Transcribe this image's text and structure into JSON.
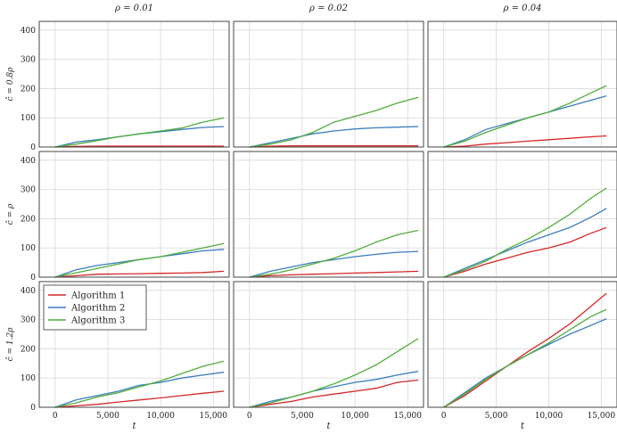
{
  "figure": {
    "col_titles": [
      "ρ = 0.01",
      "ρ = 0.02",
      "ρ = 0.04"
    ],
    "row_labels": [
      "ĉ = 0.8ρ",
      "ĉ = ρ",
      "ĉ = 1.2ρ"
    ],
    "xlabel": "t",
    "x_ticks": [
      0,
      5000,
      10000,
      15000
    ],
    "x_tick_labels": [
      "0",
      "5,000",
      "10,000",
      "15,000"
    ],
    "y_ticks": [
      0,
      100,
      200,
      300,
      400
    ],
    "y_tick_labels": [
      "0",
      "100",
      "200",
      "300",
      "400"
    ]
  },
  "colors": {
    "Algorithm 1": "#d62728",
    "Algorithm 2": "#3a7dbf",
    "Algorithm 3": "#4fae3a"
  },
  "legend": {
    "items": [
      "Algorithm 1",
      "Algorithm 2",
      "Algorithm 3"
    ],
    "placement": "top-left of bottom-left panel"
  },
  "chart_data": {
    "type": "line",
    "layout": "3x3 grid of line plots",
    "xlim": [
      -1500,
      16500
    ],
    "ylim": [
      0,
      430
    ],
    "grid": true,
    "panels": [
      {
        "row": 0,
        "col": 0,
        "series": [
          {
            "name": "Algorithm 1",
            "x": [
              0,
              2000,
              4000,
              6000,
              8000,
              10000,
              12000,
              14000,
              16000
            ],
            "values": [
              0,
              2,
              3,
              3,
              3,
              3,
              3,
              3,
              3
            ]
          },
          {
            "name": "Algorithm 2",
            "x": [
              0,
              2000,
              4000,
              6000,
              8000,
              10000,
              12000,
              14000,
              16000
            ],
            "values": [
              0,
              17,
              25,
              35,
              45,
              52,
              60,
              67,
              70
            ]
          },
          {
            "name": "Algorithm 3",
            "x": [
              0,
              2000,
              4000,
              6000,
              8000,
              10000,
              12000,
              14000,
              16000
            ],
            "values": [
              0,
              10,
              22,
              35,
              45,
              55,
              65,
              85,
              100
            ]
          }
        ]
      },
      {
        "row": 0,
        "col": 1,
        "series": [
          {
            "name": "Algorithm 1",
            "x": [
              0,
              2000,
              4000,
              6000,
              8000,
              10000,
              12000,
              14000,
              16000
            ],
            "values": [
              0,
              3,
              4,
              4,
              4,
              4,
              4,
              4,
              4
            ]
          },
          {
            "name": "Algorithm 2",
            "x": [
              0,
              2000,
              4000,
              6000,
              8000,
              10000,
              12000,
              14000,
              16000
            ],
            "values": [
              0,
              15,
              30,
              45,
              55,
              62,
              66,
              68,
              70
            ]
          },
          {
            "name": "Algorithm 3",
            "x": [
              0,
              2000,
              4000,
              6000,
              8000,
              10000,
              12000,
              14000,
              16000
            ],
            "values": [
              0,
              10,
              25,
              50,
              85,
              105,
              125,
              150,
              170
            ]
          }
        ]
      },
      {
        "row": 0,
        "col": 2,
        "series": [
          {
            "name": "Algorithm 1",
            "x": [
              0,
              2000,
              4000,
              6000,
              8000,
              10000,
              12000,
              14000,
              15500
            ],
            "values": [
              0,
              3,
              10,
              15,
              20,
              25,
              30,
              35,
              38
            ]
          },
          {
            "name": "Algorithm 2",
            "x": [
              0,
              2000,
              4000,
              6000,
              8000,
              10000,
              12000,
              14000,
              15500
            ],
            "values": [
              0,
              25,
              60,
              80,
              100,
              120,
              140,
              160,
              175
            ]
          },
          {
            "name": "Algorithm 3",
            "x": [
              0,
              2000,
              4000,
              6000,
              8000,
              10000,
              12000,
              14000,
              15500
            ],
            "values": [
              0,
              20,
              50,
              75,
              100,
              120,
              150,
              185,
              210
            ]
          }
        ]
      },
      {
        "row": 1,
        "col": 0,
        "series": [
          {
            "name": "Algorithm 1",
            "x": [
              0,
              2000,
              4000,
              6000,
              8000,
              10000,
              12000,
              14000,
              16000
            ],
            "values": [
              0,
              5,
              10,
              11,
              12,
              13,
              14,
              16,
              20
            ]
          },
          {
            "name": "Algorithm 2",
            "x": [
              0,
              2000,
              4000,
              6000,
              8000,
              10000,
              12000,
              14000,
              16000
            ],
            "values": [
              0,
              25,
              40,
              50,
              60,
              70,
              80,
              90,
              95
            ]
          },
          {
            "name": "Algorithm 3",
            "x": [
              0,
              2000,
              4000,
              6000,
              8000,
              10000,
              12000,
              14000,
              16000
            ],
            "values": [
              0,
              15,
              30,
              45,
              60,
              70,
              85,
              100,
              115
            ]
          }
        ]
      },
      {
        "row": 1,
        "col": 1,
        "series": [
          {
            "name": "Algorithm 1",
            "x": [
              0,
              2000,
              4000,
              6000,
              8000,
              10000,
              12000,
              14000,
              16000
            ],
            "values": [
              0,
              5,
              8,
              10,
              12,
              14,
              16,
              18,
              20
            ]
          },
          {
            "name": "Algorithm 2",
            "x": [
              0,
              2000,
              4000,
              6000,
              8000,
              10000,
              12000,
              14000,
              16000
            ],
            "values": [
              0,
              20,
              35,
              50,
              60,
              70,
              78,
              85,
              88
            ]
          },
          {
            "name": "Algorithm 3",
            "x": [
              0,
              2000,
              4000,
              6000,
              8000,
              10000,
              12000,
              14000,
              16000
            ],
            "values": [
              0,
              10,
              25,
              45,
              65,
              90,
              120,
              145,
              160
            ]
          }
        ]
      },
      {
        "row": 1,
        "col": 2,
        "series": [
          {
            "name": "Algorithm 1",
            "x": [
              0,
              2000,
              4000,
              6000,
              8000,
              10000,
              12000,
              14000,
              15500
            ],
            "values": [
              0,
              20,
              45,
              65,
              85,
              100,
              120,
              150,
              170
            ]
          },
          {
            "name": "Algorithm 2",
            "x": [
              0,
              2000,
              4000,
              6000,
              8000,
              10000,
              12000,
              14000,
              15500
            ],
            "values": [
              0,
              30,
              60,
              90,
              120,
              145,
              170,
              205,
              235
            ]
          },
          {
            "name": "Algorithm 3",
            "x": [
              0,
              2000,
              4000,
              6000,
              8000,
              10000,
              12000,
              14000,
              15500
            ],
            "values": [
              0,
              25,
              55,
              95,
              130,
              170,
              215,
              270,
              305
            ]
          }
        ]
      },
      {
        "row": 2,
        "col": 0,
        "series": [
          {
            "name": "Algorithm 1",
            "x": [
              0,
              2000,
              4000,
              6000,
              8000,
              10000,
              12000,
              14000,
              16000
            ],
            "values": [
              0,
              5,
              10,
              18,
              25,
              32,
              40,
              48,
              55
            ]
          },
          {
            "name": "Algorithm 2",
            "x": [
              0,
              2000,
              4000,
              6000,
              8000,
              10000,
              12000,
              14000,
              16000
            ],
            "values": [
              0,
              25,
              40,
              55,
              75,
              85,
              100,
              110,
              120
            ]
          },
          {
            "name": "Algorithm 3",
            "x": [
              0,
              2000,
              4000,
              6000,
              8000,
              10000,
              12000,
              14000,
              16000
            ],
            "values": [
              0,
              15,
              35,
              50,
              70,
              90,
              115,
              140,
              158
            ]
          }
        ]
      },
      {
        "row": 2,
        "col": 1,
        "series": [
          {
            "name": "Algorithm 1",
            "x": [
              0,
              2000,
              4000,
              6000,
              8000,
              10000,
              12000,
              14000,
              16000
            ],
            "values": [
              0,
              10,
              20,
              35,
              45,
              55,
              65,
              85,
              93
            ]
          },
          {
            "name": "Algorithm 2",
            "x": [
              0,
              2000,
              4000,
              6000,
              8000,
              10000,
              12000,
              14000,
              16000
            ],
            "values": [
              0,
              20,
              35,
              55,
              70,
              85,
              95,
              110,
              123
            ]
          },
          {
            "name": "Algorithm 3",
            "x": [
              0,
              2000,
              4000,
              6000,
              8000,
              10000,
              12000,
              14000,
              16000
            ],
            "values": [
              0,
              15,
              35,
              55,
              80,
              110,
              145,
              190,
              235
            ]
          }
        ]
      },
      {
        "row": 2,
        "col": 2,
        "series": [
          {
            "name": "Algorithm 1",
            "x": [
              0,
              2000,
              4000,
              6000,
              8000,
              10000,
              12000,
              14000,
              15500
            ],
            "values": [
              0,
              40,
              90,
              140,
              190,
              235,
              285,
              345,
              390
            ]
          },
          {
            "name": "Algorithm 2",
            "x": [
              0,
              2000,
              4000,
              6000,
              8000,
              10000,
              12000,
              14000,
              15500
            ],
            "values": [
              0,
              50,
              100,
              140,
              180,
              215,
              250,
              280,
              303
            ]
          },
          {
            "name": "Algorithm 3",
            "x": [
              0,
              2000,
              4000,
              6000,
              8000,
              10000,
              12000,
              14000,
              15500
            ],
            "values": [
              0,
              45,
              95,
              140,
              180,
              220,
              265,
              310,
              335
            ]
          }
        ]
      }
    ]
  }
}
